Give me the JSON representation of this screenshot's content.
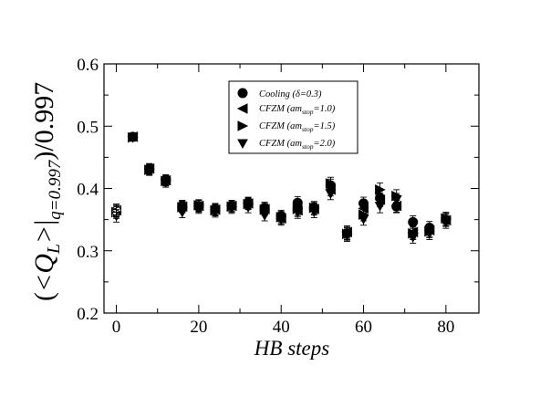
{
  "chart_data": {
    "type": "scatter",
    "xlabel": "HB steps",
    "ylabel": {
      "prefix": "(",
      "main": "<Q",
      "main_sub": "L",
      "close": ">",
      "bar": "|",
      "bar_sub": "q=0.997",
      "suffix": ")/0.997"
    },
    "xlim": [
      -3,
      88
    ],
    "ylim": [
      0.2,
      0.6
    ],
    "x_ticks": [
      0,
      20,
      40,
      60,
      80
    ],
    "y_ticks": [
      0.2,
      0.3,
      0.4,
      0.5,
      0.6
    ],
    "x_tick_labels": [
      "0",
      "20",
      "40",
      "60",
      "80"
    ],
    "y_tick_labels": [
      "0.2",
      "0.3",
      "0.4",
      "0.5",
      "0.6"
    ],
    "grid": false,
    "legend_position": "top-center",
    "series": [
      {
        "name": "Cooling (δ=0.3)",
        "marker": "circle",
        "points": [
          {
            "x": 0,
            "y": 0.364,
            "err": 0.01,
            "open": true
          },
          {
            "x": 4,
            "y": 0.483,
            "err": 0.006
          },
          {
            "x": 8,
            "y": 0.431,
            "err": 0.008
          },
          {
            "x": 12,
            "y": 0.414,
            "err": 0.008
          },
          {
            "x": 16,
            "y": 0.372,
            "err": 0.009
          },
          {
            "x": 20,
            "y": 0.371,
            "err": 0.009
          },
          {
            "x": 24,
            "y": 0.367,
            "err": 0.009
          },
          {
            "x": 28,
            "y": 0.372,
            "err": 0.009
          },
          {
            "x": 32,
            "y": 0.377,
            "err": 0.009
          },
          {
            "x": 36,
            "y": 0.369,
            "err": 0.009
          },
          {
            "x": 40,
            "y": 0.356,
            "err": 0.009
          },
          {
            "x": 44,
            "y": 0.377,
            "err": 0.01
          },
          {
            "x": 48,
            "y": 0.369,
            "err": 0.01
          },
          {
            "x": 52,
            "y": 0.405,
            "err": 0.01
          },
          {
            "x": 56,
            "y": 0.328,
            "err": 0.01
          },
          {
            "x": 60,
            "y": 0.376,
            "err": 0.01
          },
          {
            "x": 64,
            "y": 0.385,
            "err": 0.011
          },
          {
            "x": 68,
            "y": 0.371,
            "err": 0.01
          },
          {
            "x": 72,
            "y": 0.346,
            "err": 0.01
          },
          {
            "x": 76,
            "y": 0.337,
            "err": 0.01
          },
          {
            "x": 80,
            "y": 0.35,
            "err": 0.01
          }
        ]
      },
      {
        "name": "CFZM (am_stop=1.0)",
        "marker": "triangle-left",
        "points": [
          {
            "x": 0,
            "y": 0.365,
            "err": 0.01,
            "open": true
          },
          {
            "x": 4,
            "y": 0.483,
            "err": 0.006
          },
          {
            "x": 8,
            "y": 0.432,
            "err": 0.008
          },
          {
            "x": 12,
            "y": 0.413,
            "err": 0.008
          },
          {
            "x": 16,
            "y": 0.371,
            "err": 0.009
          },
          {
            "x": 20,
            "y": 0.372,
            "err": 0.009
          },
          {
            "x": 24,
            "y": 0.366,
            "err": 0.009
          },
          {
            "x": 28,
            "y": 0.372,
            "err": 0.009
          },
          {
            "x": 32,
            "y": 0.376,
            "err": 0.009
          },
          {
            "x": 36,
            "y": 0.367,
            "err": 0.009
          },
          {
            "x": 40,
            "y": 0.352,
            "err": 0.009
          },
          {
            "x": 44,
            "y": 0.365,
            "err": 0.01
          },
          {
            "x": 48,
            "y": 0.367,
            "err": 0.01
          },
          {
            "x": 52,
            "y": 0.398,
            "err": 0.01
          },
          {
            "x": 56,
            "y": 0.33,
            "err": 0.01
          },
          {
            "x": 60,
            "y": 0.368,
            "err": 0.01
          },
          {
            "x": 64,
            "y": 0.382,
            "err": 0.011
          },
          {
            "x": 68,
            "y": 0.372,
            "err": 0.01
          },
          {
            "x": 72,
            "y": 0.33,
            "err": 0.01
          },
          {
            "x": 76,
            "y": 0.333,
            "err": 0.01
          },
          {
            "x": 80,
            "y": 0.349,
            "err": 0.01
          }
        ]
      },
      {
        "name": "CFZM (am_stop=1.5)",
        "marker": "triangle-right",
        "points": [
          {
            "x": 0,
            "y": 0.362,
            "err": 0.01,
            "open": true
          },
          {
            "x": 4,
            "y": 0.482,
            "err": 0.006
          },
          {
            "x": 8,
            "y": 0.43,
            "err": 0.008
          },
          {
            "x": 12,
            "y": 0.412,
            "err": 0.008
          },
          {
            "x": 16,
            "y": 0.37,
            "err": 0.009
          },
          {
            "x": 20,
            "y": 0.373,
            "err": 0.009
          },
          {
            "x": 24,
            "y": 0.365,
            "err": 0.009
          },
          {
            "x": 28,
            "y": 0.371,
            "err": 0.009
          },
          {
            "x": 32,
            "y": 0.375,
            "err": 0.009
          },
          {
            "x": 36,
            "y": 0.366,
            "err": 0.009
          },
          {
            "x": 40,
            "y": 0.354,
            "err": 0.009
          },
          {
            "x": 44,
            "y": 0.367,
            "err": 0.01
          },
          {
            "x": 48,
            "y": 0.369,
            "err": 0.01
          },
          {
            "x": 52,
            "y": 0.408,
            "err": 0.01
          },
          {
            "x": 56,
            "y": 0.327,
            "err": 0.01
          },
          {
            "x": 60,
            "y": 0.358,
            "err": 0.01
          },
          {
            "x": 64,
            "y": 0.398,
            "err": 0.011
          },
          {
            "x": 68,
            "y": 0.388,
            "err": 0.01
          },
          {
            "x": 72,
            "y": 0.328,
            "err": 0.01
          },
          {
            "x": 76,
            "y": 0.331,
            "err": 0.01
          },
          {
            "x": 80,
            "y": 0.352,
            "err": 0.01
          }
        ]
      },
      {
        "name": "CFZM (am_stop=2.0)",
        "marker": "triangle-down",
        "points": [
          {
            "x": 0,
            "y": 0.356,
            "err": 0.01,
            "open": true
          },
          {
            "x": 4,
            "y": 0.482,
            "err": 0.006
          },
          {
            "x": 8,
            "y": 0.429,
            "err": 0.008
          },
          {
            "x": 12,
            "y": 0.41,
            "err": 0.008
          },
          {
            "x": 16,
            "y": 0.362,
            "err": 0.009
          },
          {
            "x": 20,
            "y": 0.369,
            "err": 0.009
          },
          {
            "x": 24,
            "y": 0.363,
            "err": 0.009
          },
          {
            "x": 28,
            "y": 0.369,
            "err": 0.009
          },
          {
            "x": 32,
            "y": 0.37,
            "err": 0.009
          },
          {
            "x": 36,
            "y": 0.357,
            "err": 0.009
          },
          {
            "x": 40,
            "y": 0.35,
            "err": 0.009
          },
          {
            "x": 44,
            "y": 0.362,
            "err": 0.01
          },
          {
            "x": 48,
            "y": 0.363,
            "err": 0.01
          },
          {
            "x": 52,
            "y": 0.392,
            "err": 0.01
          },
          {
            "x": 56,
            "y": 0.325,
            "err": 0.01
          },
          {
            "x": 60,
            "y": 0.351,
            "err": 0.01
          },
          {
            "x": 64,
            "y": 0.372,
            "err": 0.011
          },
          {
            "x": 68,
            "y": 0.382,
            "err": 0.01
          },
          {
            "x": 72,
            "y": 0.322,
            "err": 0.01
          },
          {
            "x": 76,
            "y": 0.328,
            "err": 0.01
          },
          {
            "x": 80,
            "y": 0.346,
            "err": 0.01
          }
        ]
      }
    ]
  },
  "legend": {
    "entries": [
      {
        "marker": "circle",
        "text": "Cooling (δ=0.3)"
      },
      {
        "marker": "triangle-left",
        "text": "CFZM (am",
        "sub": "stop",
        "after": "=1.0)"
      },
      {
        "marker": "triangle-right",
        "text": "CFZM (am",
        "sub": "stop",
        "after": "=1.5)"
      },
      {
        "marker": "triangle-down",
        "text": "CFZM (am",
        "sub": "stop",
        "after": "=2.0)"
      }
    ]
  }
}
